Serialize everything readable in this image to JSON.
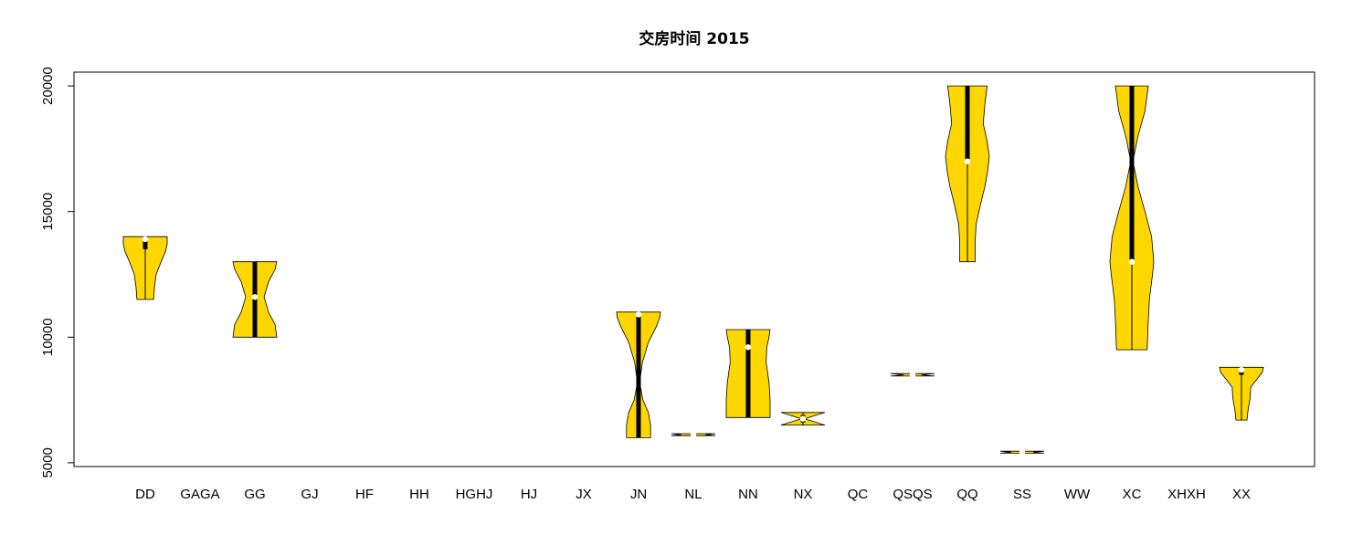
{
  "chart_data": {
    "type": "violin",
    "title": "交房时间 2015",
    "xlabel": "",
    "ylabel": "",
    "ylim": [
      4850,
      20550
    ],
    "yticks": [
      5000,
      10000,
      15000,
      20000
    ],
    "categories": [
      "DD",
      "GAGA",
      "GG",
      "GJ",
      "HF",
      "HH",
      "HGHJ",
      "HJ",
      "JX",
      "JN",
      "NL",
      "NN",
      "NX",
      "QC",
      "QSQS",
      "QQ",
      "SS",
      "WW",
      "XC",
      "XHXH",
      "XX"
    ],
    "violin_color": "#FFD700",
    "violins": [
      {
        "category": "DD",
        "min": 11500,
        "q1": 13500,
        "median": 13900,
        "q3": 14000,
        "max": 14000,
        "profile": [
          [
            11500,
            0.38
          ],
          [
            12000,
            0.42
          ],
          [
            12500,
            0.5
          ],
          [
            13000,
            0.72
          ],
          [
            13400,
            0.92
          ],
          [
            13700,
            1.0
          ],
          [
            14000,
            1.0
          ]
        ]
      },
      {
        "category": "GG",
        "min": 10000,
        "q1": 10000,
        "median": 11600,
        "q3": 13000,
        "max": 13000,
        "profile": [
          [
            10000,
            1.0
          ],
          [
            10500,
            0.92
          ],
          [
            11000,
            0.62
          ],
          [
            11600,
            0.42
          ],
          [
            12200,
            0.62
          ],
          [
            12700,
            0.92
          ],
          [
            13000,
            1.0
          ]
        ]
      },
      {
        "category": "JN",
        "min": 6000,
        "q1": 6000,
        "median": 10900,
        "q3": 10900,
        "max": 11000,
        "profile": [
          [
            6000,
            0.55
          ],
          [
            6500,
            0.55
          ],
          [
            7000,
            0.45
          ],
          [
            7500,
            0.2
          ],
          [
            8200,
            0.05
          ],
          [
            9000,
            0.18
          ],
          [
            9800,
            0.45
          ],
          [
            10400,
            0.8
          ],
          [
            10800,
            0.98
          ],
          [
            11000,
            1.0
          ]
        ]
      },
      {
        "category": "NL",
        "min": 6080,
        "q1": 6100,
        "median": 6120,
        "q3": 6140,
        "max": 6160,
        "profile": [
          [
            6080,
            1.0
          ],
          [
            6120,
            0.55
          ],
          [
            6160,
            1.0
          ]
        ]
      },
      {
        "category": "NN",
        "min": 6800,
        "q1": 6800,
        "median": 9600,
        "q3": 10300,
        "max": 10300,
        "profile": [
          [
            6800,
            1.0
          ],
          [
            7500,
            1.0
          ],
          [
            8200,
            0.95
          ],
          [
            9000,
            0.82
          ],
          [
            9600,
            0.85
          ],
          [
            10000,
            0.95
          ],
          [
            10300,
            1.0
          ]
        ]
      },
      {
        "category": "NX",
        "min": 6500,
        "q1": 6600,
        "median": 6750,
        "q3": 6900,
        "max": 7000,
        "profile": [
          [
            6500,
            1.0
          ],
          [
            6620,
            0.55
          ],
          [
            6750,
            0.08
          ],
          [
            6880,
            0.55
          ],
          [
            7000,
            1.0
          ]
        ]
      },
      {
        "category": "QSQS",
        "min": 8450,
        "q1": 8470,
        "median": 8500,
        "q3": 8520,
        "max": 8550,
        "profile": [
          [
            8450,
            1.0
          ],
          [
            8500,
            0.4
          ],
          [
            8550,
            1.0
          ]
        ]
      },
      {
        "category": "QQ",
        "min": 13000,
        "q1": 17000,
        "median": 17000,
        "q3": 20000,
        "max": 20000,
        "profile": [
          [
            13000,
            0.35
          ],
          [
            13800,
            0.35
          ],
          [
            14500,
            0.4
          ],
          [
            15300,
            0.6
          ],
          [
            16000,
            0.8
          ],
          [
            16600,
            0.92
          ],
          [
            17200,
            1.0
          ],
          [
            17800,
            0.9
          ],
          [
            18500,
            0.72
          ],
          [
            19300,
            0.8
          ],
          [
            20000,
            0.9
          ]
        ]
      },
      {
        "category": "SS",
        "min": 5380,
        "q1": 5400,
        "median": 5420,
        "q3": 5440,
        "max": 5460,
        "profile": [
          [
            5380,
            1.0
          ],
          [
            5420,
            0.5
          ],
          [
            5460,
            1.0
          ]
        ]
      },
      {
        "category": "XC",
        "min": 9500,
        "q1": 13000,
        "median": 13000,
        "q3": 20000,
        "max": 20000,
        "profile": [
          [
            9500,
            0.7
          ],
          [
            10500,
            0.74
          ],
          [
            11500,
            0.8
          ],
          [
            12500,
            0.94
          ],
          [
            13000,
            1.0
          ],
          [
            14000,
            0.9
          ],
          [
            15000,
            0.6
          ],
          [
            16000,
            0.28
          ],
          [
            17000,
            0.05
          ],
          [
            18000,
            0.28
          ],
          [
            19000,
            0.6
          ],
          [
            20000,
            0.75
          ]
        ]
      },
      {
        "category": "XX",
        "min": 6700,
        "q1": 8500,
        "median": 8700,
        "q3": 8800,
        "max": 8800,
        "profile": [
          [
            6700,
            0.25
          ],
          [
            7100,
            0.3
          ],
          [
            7600,
            0.4
          ],
          [
            8000,
            0.42
          ],
          [
            8300,
            0.68
          ],
          [
            8600,
            0.95
          ],
          [
            8800,
            1.0
          ]
        ]
      }
    ]
  }
}
